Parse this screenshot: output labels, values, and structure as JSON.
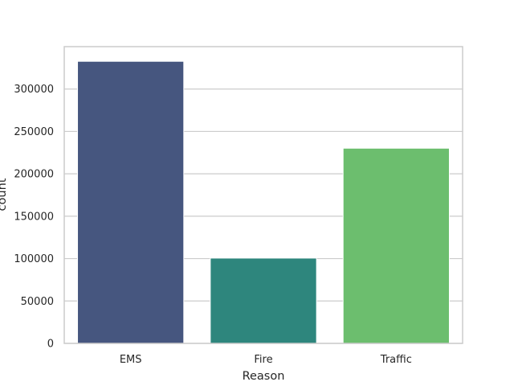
{
  "chart_data": {
    "type": "bar",
    "title": "",
    "xlabel": "Reason",
    "ylabel": "count",
    "categories": [
      "EMS",
      "Fire",
      "Traffic"
    ],
    "values": [
      332700,
      100600,
      230200
    ],
    "colors": [
      "#46567f",
      "#2e867d",
      "#6cbe6e"
    ],
    "ylim": [
      0,
      350000
    ],
    "yticks": [
      {
        "value": 0,
        "label": "0"
      },
      {
        "value": 50000,
        "label": "50000"
      },
      {
        "value": 100000,
        "label": "100000"
      },
      {
        "value": 150000,
        "label": "150000"
      },
      {
        "value": 200000,
        "label": "200000"
      },
      {
        "value": 250000,
        "label": "250000"
      },
      {
        "value": 300000,
        "label": "300000"
      }
    ],
    "grid": "horizontal",
    "legend": "none"
  }
}
